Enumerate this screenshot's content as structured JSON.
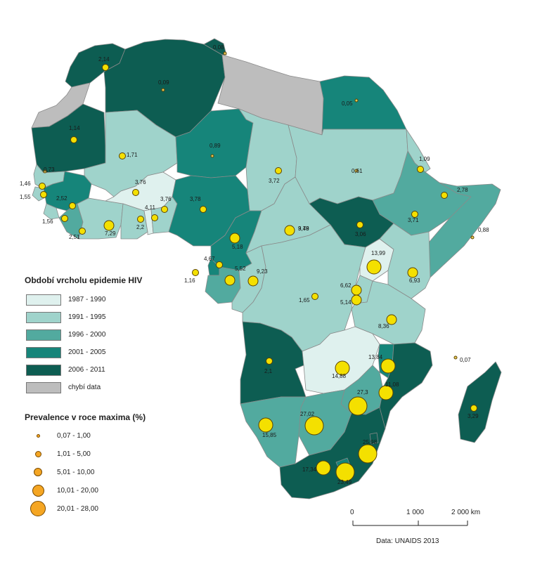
{
  "colors": {
    "period_1987_1990": "#dff1ee",
    "period_1991_1995": "#9fd3cb",
    "period_1996_2000": "#52aa9f",
    "period_2001_2005": "#16857a",
    "period_2006_2011": "#0d5d52",
    "no_data": "#bdbdbd",
    "bubble_prevalence": "#f5a623",
    "bubble_low": "#e8c85a",
    "bubble_high": "#f4e000"
  },
  "legend_period": {
    "title": "Období vrcholu epidemie HIV",
    "items": [
      "1987 - 1990",
      "1991 - 1995",
      "1996 - 2000",
      "2001 - 2005",
      "2006 - 2011",
      "chybí data"
    ]
  },
  "legend_prevalence": {
    "title": "Prevalence v roce maxima (%)",
    "items": [
      "0,07 - 1,00",
      "1,01 - 5,00",
      "5,01 - 10,00",
      "10,01 - 20,00",
      "20,01 - 28,00"
    ]
  },
  "scale_bar": {
    "labels": [
      "0",
      "1 000",
      "2 000 km"
    ]
  },
  "source": "Data: UNAIDS 2013",
  "map_values": [
    "2,14",
    "0,09",
    "0,08",
    "0,05",
    "1,14",
    "1,71",
    "0,89",
    "3,72",
    "0,61",
    "1,09",
    "2,78",
    "1,46",
    "0,73",
    "1,55",
    "2,52",
    "3,76",
    "3,76",
    "3,78",
    "4,11",
    "2,2",
    "1,56",
    "2,51",
    "7,29",
    "3,78",
    "5,18",
    "9,49",
    "3,06",
    "3,71",
    "0,88",
    "4,67",
    "1,16",
    "5,52",
    "9,23",
    "13,99",
    "6,93",
    "6,62",
    "5,14",
    "1,65",
    "8,36",
    "0,07",
    "13,84",
    "14,88",
    "2,1",
    "11,08",
    "27,3",
    "27,02",
    "15,85",
    "25,98",
    "17,34",
    "23,49",
    "3,29"
  ]
}
